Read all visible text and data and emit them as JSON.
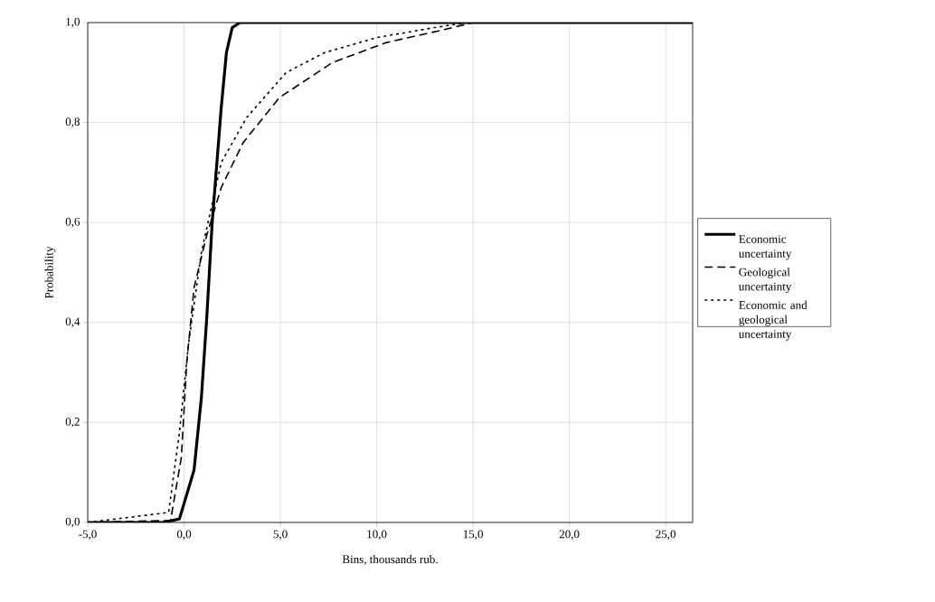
{
  "chart_data": {
    "type": "line",
    "xlabel": "Bins, thousands rub.",
    "ylabel": "Probability",
    "xlim": [
      -5,
      26.4
    ],
    "ylim": [
      0,
      1
    ],
    "xticks": [
      {
        "value": -5,
        "label": "-5,0"
      },
      {
        "value": 0,
        "label": "0,0"
      },
      {
        "value": 5,
        "label": "5,0"
      },
      {
        "value": 10,
        "label": "10,0"
      },
      {
        "value": 15,
        "label": "15,0"
      },
      {
        "value": 20,
        "label": "20,0"
      },
      {
        "value": 25,
        "label": "25,0"
      }
    ],
    "yticks": [
      {
        "value": 0,
        "label": "0,0"
      },
      {
        "value": 0.2,
        "label": "0,2"
      },
      {
        "value": 0.4,
        "label": "0,4"
      },
      {
        "value": 0.6,
        "label": "0,6"
      },
      {
        "value": 0.8,
        "label": "0,8"
      },
      {
        "value": 1,
        "label": "1,0"
      }
    ],
    "grid": true,
    "legend": "right",
    "marker": "none",
    "series": [
      {
        "name": "Economic uncertainty",
        "color": "#000000",
        "line_style": "solid",
        "x": [
          -5,
          -1.1,
          -0.24,
          0.52,
          0.9,
          1.18,
          1.46,
          1.93,
          2.2,
          2.5,
          2.9,
          26.4
        ],
        "values": [
          0,
          0,
          0.007,
          0.105,
          0.25,
          0.41,
          0.6,
          0.83,
          0.94,
          0.99,
          1,
          1
        ]
      },
      {
        "name": "Geological uncertainty",
        "color": "#000000",
        "line_style": "dashed",
        "x": [
          -5,
          -0.7,
          -0.14,
          0.14,
          0.52,
          1.18,
          1.93,
          3.07,
          4.95,
          7.7,
          10.5,
          13.4,
          15,
          26.4
        ],
        "values": [
          0,
          0.004,
          0.13,
          0.32,
          0.47,
          0.575,
          0.67,
          0.76,
          0.85,
          0.92,
          0.96,
          0.985,
          1,
          1
        ]
      },
      {
        "name": "Economic and geological uncertainty",
        "color": "#000000",
        "line_style": "dotted",
        "x": [
          -5,
          -0.8,
          -0.24,
          0.24,
          0.9,
          1.93,
          3.25,
          5.3,
          7.3,
          10,
          13,
          14.7,
          26.4
        ],
        "values": [
          0,
          0.02,
          0.18,
          0.36,
          0.54,
          0.72,
          0.81,
          0.9,
          0.94,
          0.97,
          0.99,
          1,
          1
        ]
      }
    ]
  }
}
